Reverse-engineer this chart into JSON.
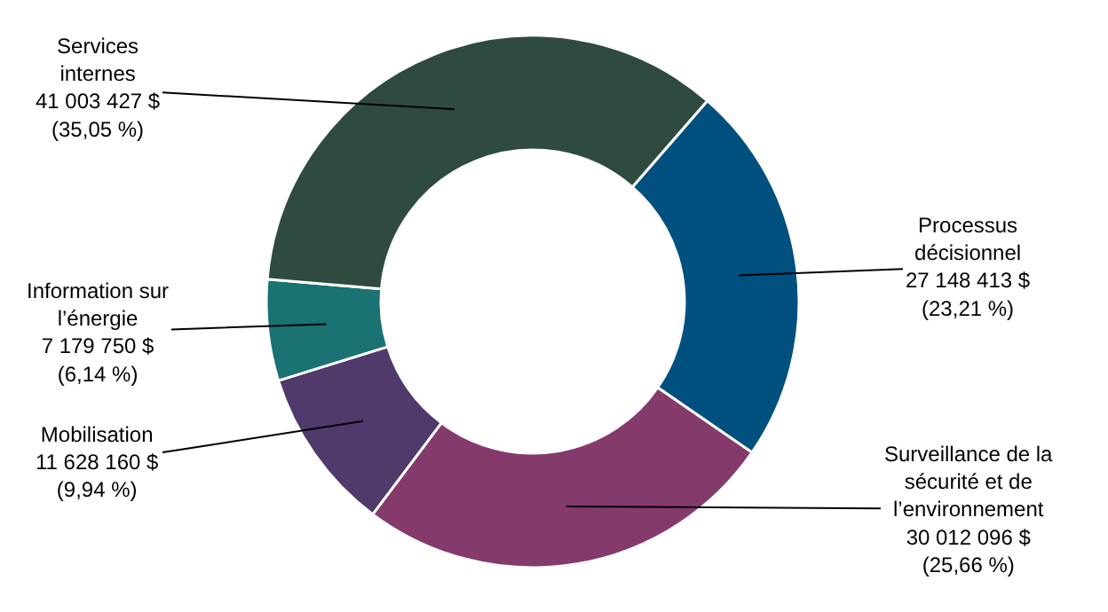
{
  "chart_data": {
    "type": "donut",
    "categories": [
      "Processus décisionnel",
      "Surveillance de la sécurité et de l’environnement",
      "Mobilisation",
      "Information sur l’énergie",
      "Services internes"
    ],
    "values": [
      27148413,
      30012096,
      11628160,
      7179750,
      41003427
    ],
    "value_labels": [
      "27 148 413 $ (23,21 %)",
      "30 012 096 $ (25,66 %)",
      "11 628 160 $ (9,94 %)",
      "7 179 750 $ (6,14 %)",
      "41 003 427 $ (35,05 %)"
    ],
    "colors": [
      "#00507f",
      "#853a6c",
      "#4f3a6b",
      "#1a7272",
      "#2f4b3f"
    ],
    "legend": false
  }
}
